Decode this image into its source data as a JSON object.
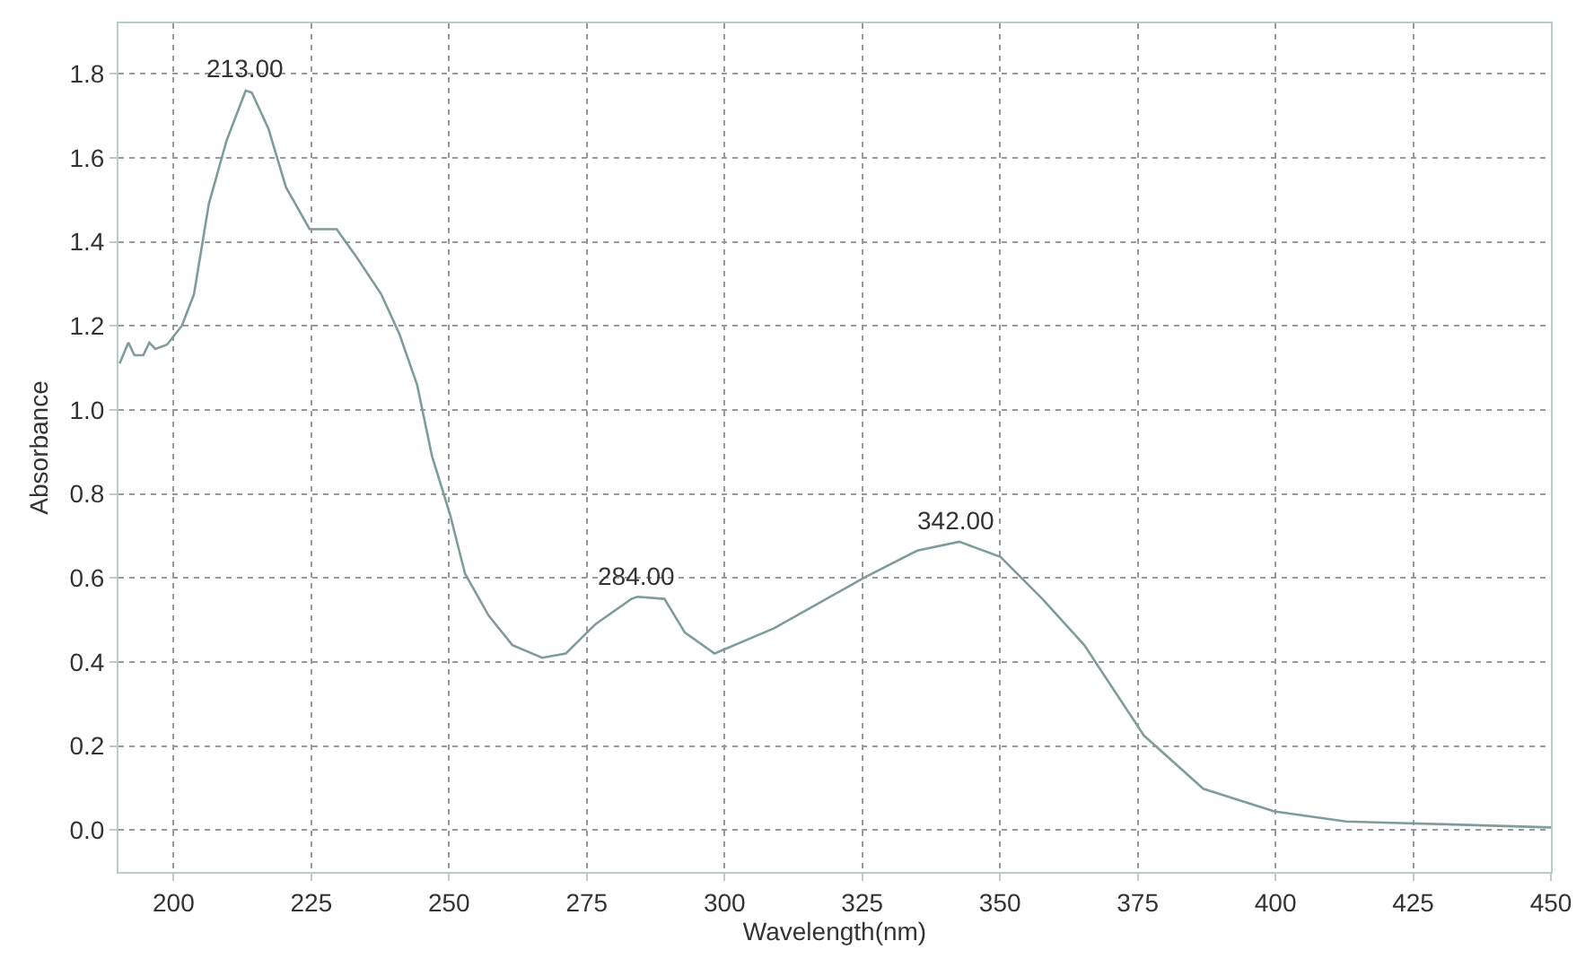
{
  "chart_data": {
    "type": "line",
    "xlabel": "Wavelength(nm)",
    "ylabel": "Absorbance",
    "x": [
      190.2,
      191.8,
      192.9,
      194.5,
      195.6,
      196.7,
      198.8,
      201.5,
      203.7,
      206.4,
      209.6,
      213.1,
      214.2,
      217.2,
      220.4,
      224.7,
      229.6,
      233.4,
      237.7,
      241.0,
      244.2,
      246.9,
      250.2,
      252.9,
      257.2,
      261.5,
      266.9,
      271.2,
      276.6,
      283.1,
      284.2,
      289.1,
      292.8,
      298.2,
      309.0,
      325.3,
      335.0,
      342.6,
      350.1,
      357.7,
      365.3,
      376.1,
      386.9,
      399.8,
      412.8,
      432.3,
      450
    ],
    "series": [
      {
        "color": "#7f9c9c",
        "values": [
          1.11,
          1.16,
          1.13,
          1.13,
          1.16,
          1.145,
          1.155,
          1.2,
          1.275,
          1.49,
          1.64,
          1.76,
          1.755,
          1.67,
          1.53,
          1.43,
          1.43,
          1.36,
          1.275,
          1.18,
          1.06,
          0.89,
          0.75,
          0.61,
          0.51,
          0.44,
          0.41,
          0.42,
          0.49,
          0.55,
          0.555,
          0.55,
          0.47,
          0.42,
          0.48,
          0.6,
          0.665,
          0.686,
          0.65,
          0.55,
          0.44,
          0.225,
          0.098,
          0.044,
          0.02,
          0.013,
          0.006
        ]
      }
    ],
    "xlim": [
      190,
      450
    ],
    "xticks": [
      200,
      225,
      250,
      275,
      300,
      325,
      350,
      375,
      400,
      425,
      450
    ],
    "ylim": [
      -0.1,
      1.92
    ],
    "yticks": [
      {
        "value": 0,
        "label": "0.0"
      },
      0.2,
      0.4,
      0.6,
      0.8,
      {
        "value": 1,
        "label": "1.0"
      },
      1.2,
      1.4,
      1.6,
      1.8
    ],
    "grid": true,
    "marker": "none",
    "line_style": "solid",
    "annotations": [
      {
        "text": "213.00",
        "x": 213,
        "y": 1.76
      },
      {
        "text": "284.00",
        "x": 284,
        "y": 0.555
      },
      {
        "text": "342.00",
        "x": 342,
        "y": 0.686
      }
    ]
  }
}
